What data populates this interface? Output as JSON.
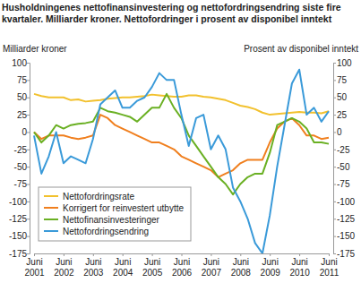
{
  "chart_data": {
    "type": "line",
    "title": "Husholdningenes nettofinansinvestering og nettofordringsendring siste fire kvartaler. Milliarder kroner. Nettofordringer i prosent av disponibel inntekt",
    "ylabel": "Milliarder kroner",
    "y2label": "Prosent av disponibel inntekt",
    "categories": [
      "Juni 2001",
      null,
      null,
      null,
      "Juni 2002",
      null,
      null,
      null,
      "Juni 2003",
      null,
      null,
      null,
      "Juni 2004",
      null,
      null,
      null,
      "Juni 2005",
      null,
      null,
      null,
      "Juni 2006",
      null,
      null,
      null,
      "Juni 2007",
      null,
      null,
      null,
      "Juni 2008",
      null,
      null,
      null,
      "Juni 2009",
      null,
      null,
      null,
      "Juni 2010",
      null,
      null,
      null,
      "Juni 2011"
    ],
    "ylim": [
      -175,
      100
    ],
    "yticks": [
      -175,
      -150,
      -125,
      -100,
      -75,
      -50,
      -25,
      0,
      25,
      50,
      75,
      100
    ],
    "y2lim": [
      -175,
      100
    ],
    "y2ticks": [
      -175,
      -150,
      -125,
      -100,
      -75,
      -50,
      -25,
      0,
      25,
      50,
      75,
      100
    ],
    "grid": false,
    "legend": "bottom left",
    "series": [
      {
        "name": "Nettofordringsrate",
        "color": "#f2c12e",
        "axis": "y2",
        "values": [
          55,
          52,
          50,
          50,
          50,
          46,
          47,
          44,
          45,
          46,
          48,
          49,
          50,
          50,
          51,
          52,
          54,
          53,
          52,
          51,
          51,
          53,
          53,
          51,
          50,
          48,
          46,
          42,
          38,
          36,
          33,
          28,
          25,
          26,
          27,
          28,
          29,
          28,
          28,
          27,
          30
        ]
      },
      {
        "name": "Korrigert for reinvestert utbytte",
        "color": "#f07f1e",
        "values": [
          0,
          -10,
          -5,
          -5,
          -5,
          -8,
          -10,
          -8,
          -5,
          25,
          20,
          10,
          5,
          0,
          -5,
          -10,
          -15,
          -15,
          -20,
          -25,
          -35,
          -40,
          -45,
          -50,
          -55,
          -65,
          -60,
          -55,
          -45,
          -40,
          -40,
          -40,
          -15,
          5,
          15,
          20,
          10,
          -5,
          -5,
          -10,
          -8
        ]
      },
      {
        "name": "Nettofinansinvesteringer",
        "color": "#6ab023",
        "values": [
          0,
          -15,
          -5,
          10,
          5,
          10,
          12,
          13,
          15,
          35,
          30,
          28,
          25,
          22,
          15,
          25,
          35,
          35,
          55,
          35,
          20,
          -5,
          -20,
          -35,
          -50,
          -65,
          -75,
          -90,
          -75,
          -65,
          -60,
          -60,
          -30,
          10,
          15,
          20,
          15,
          5,
          -15,
          -15,
          -17
        ]
      },
      {
        "name": "Nettofordringsendring",
        "color": "#3a9ad9",
        "values": [
          -5,
          -60,
          -35,
          0,
          -45,
          -35,
          -40,
          -45,
          -10,
          40,
          50,
          60,
          35,
          35,
          45,
          50,
          65,
          85,
          75,
          75,
          25,
          -20,
          20,
          25,
          -25,
          -5,
          -25,
          -80,
          -100,
          -125,
          -160,
          -175,
          -120,
          -50,
          10,
          70,
          90,
          25,
          35,
          15,
          30
        ]
      }
    ]
  }
}
